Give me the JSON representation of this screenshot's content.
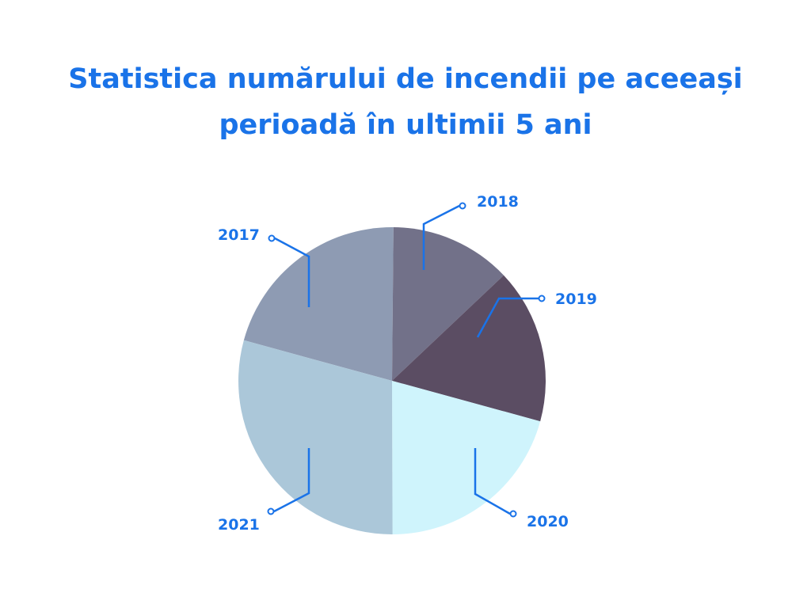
{
  "chart_data": {
    "type": "pie",
    "title_lines": [
      "Statistica numărului de incendii pe aceeași",
      "perioadă în ultimii 5 ani"
    ],
    "slices": [
      {
        "label": "2017",
        "value": 20.9,
        "color": "#8e9bb3"
      },
      {
        "label": "2018",
        "value": 12.8,
        "color": "#727189"
      },
      {
        "label": "2019",
        "value": 16.3,
        "color": "#5b4d63"
      },
      {
        "label": "2020",
        "value": 20.7,
        "color": "#cff4fc"
      },
      {
        "label": "2021",
        "value": 29.3,
        "color": "#abc7d9"
      }
    ],
    "label_color": "#1a73e8"
  }
}
